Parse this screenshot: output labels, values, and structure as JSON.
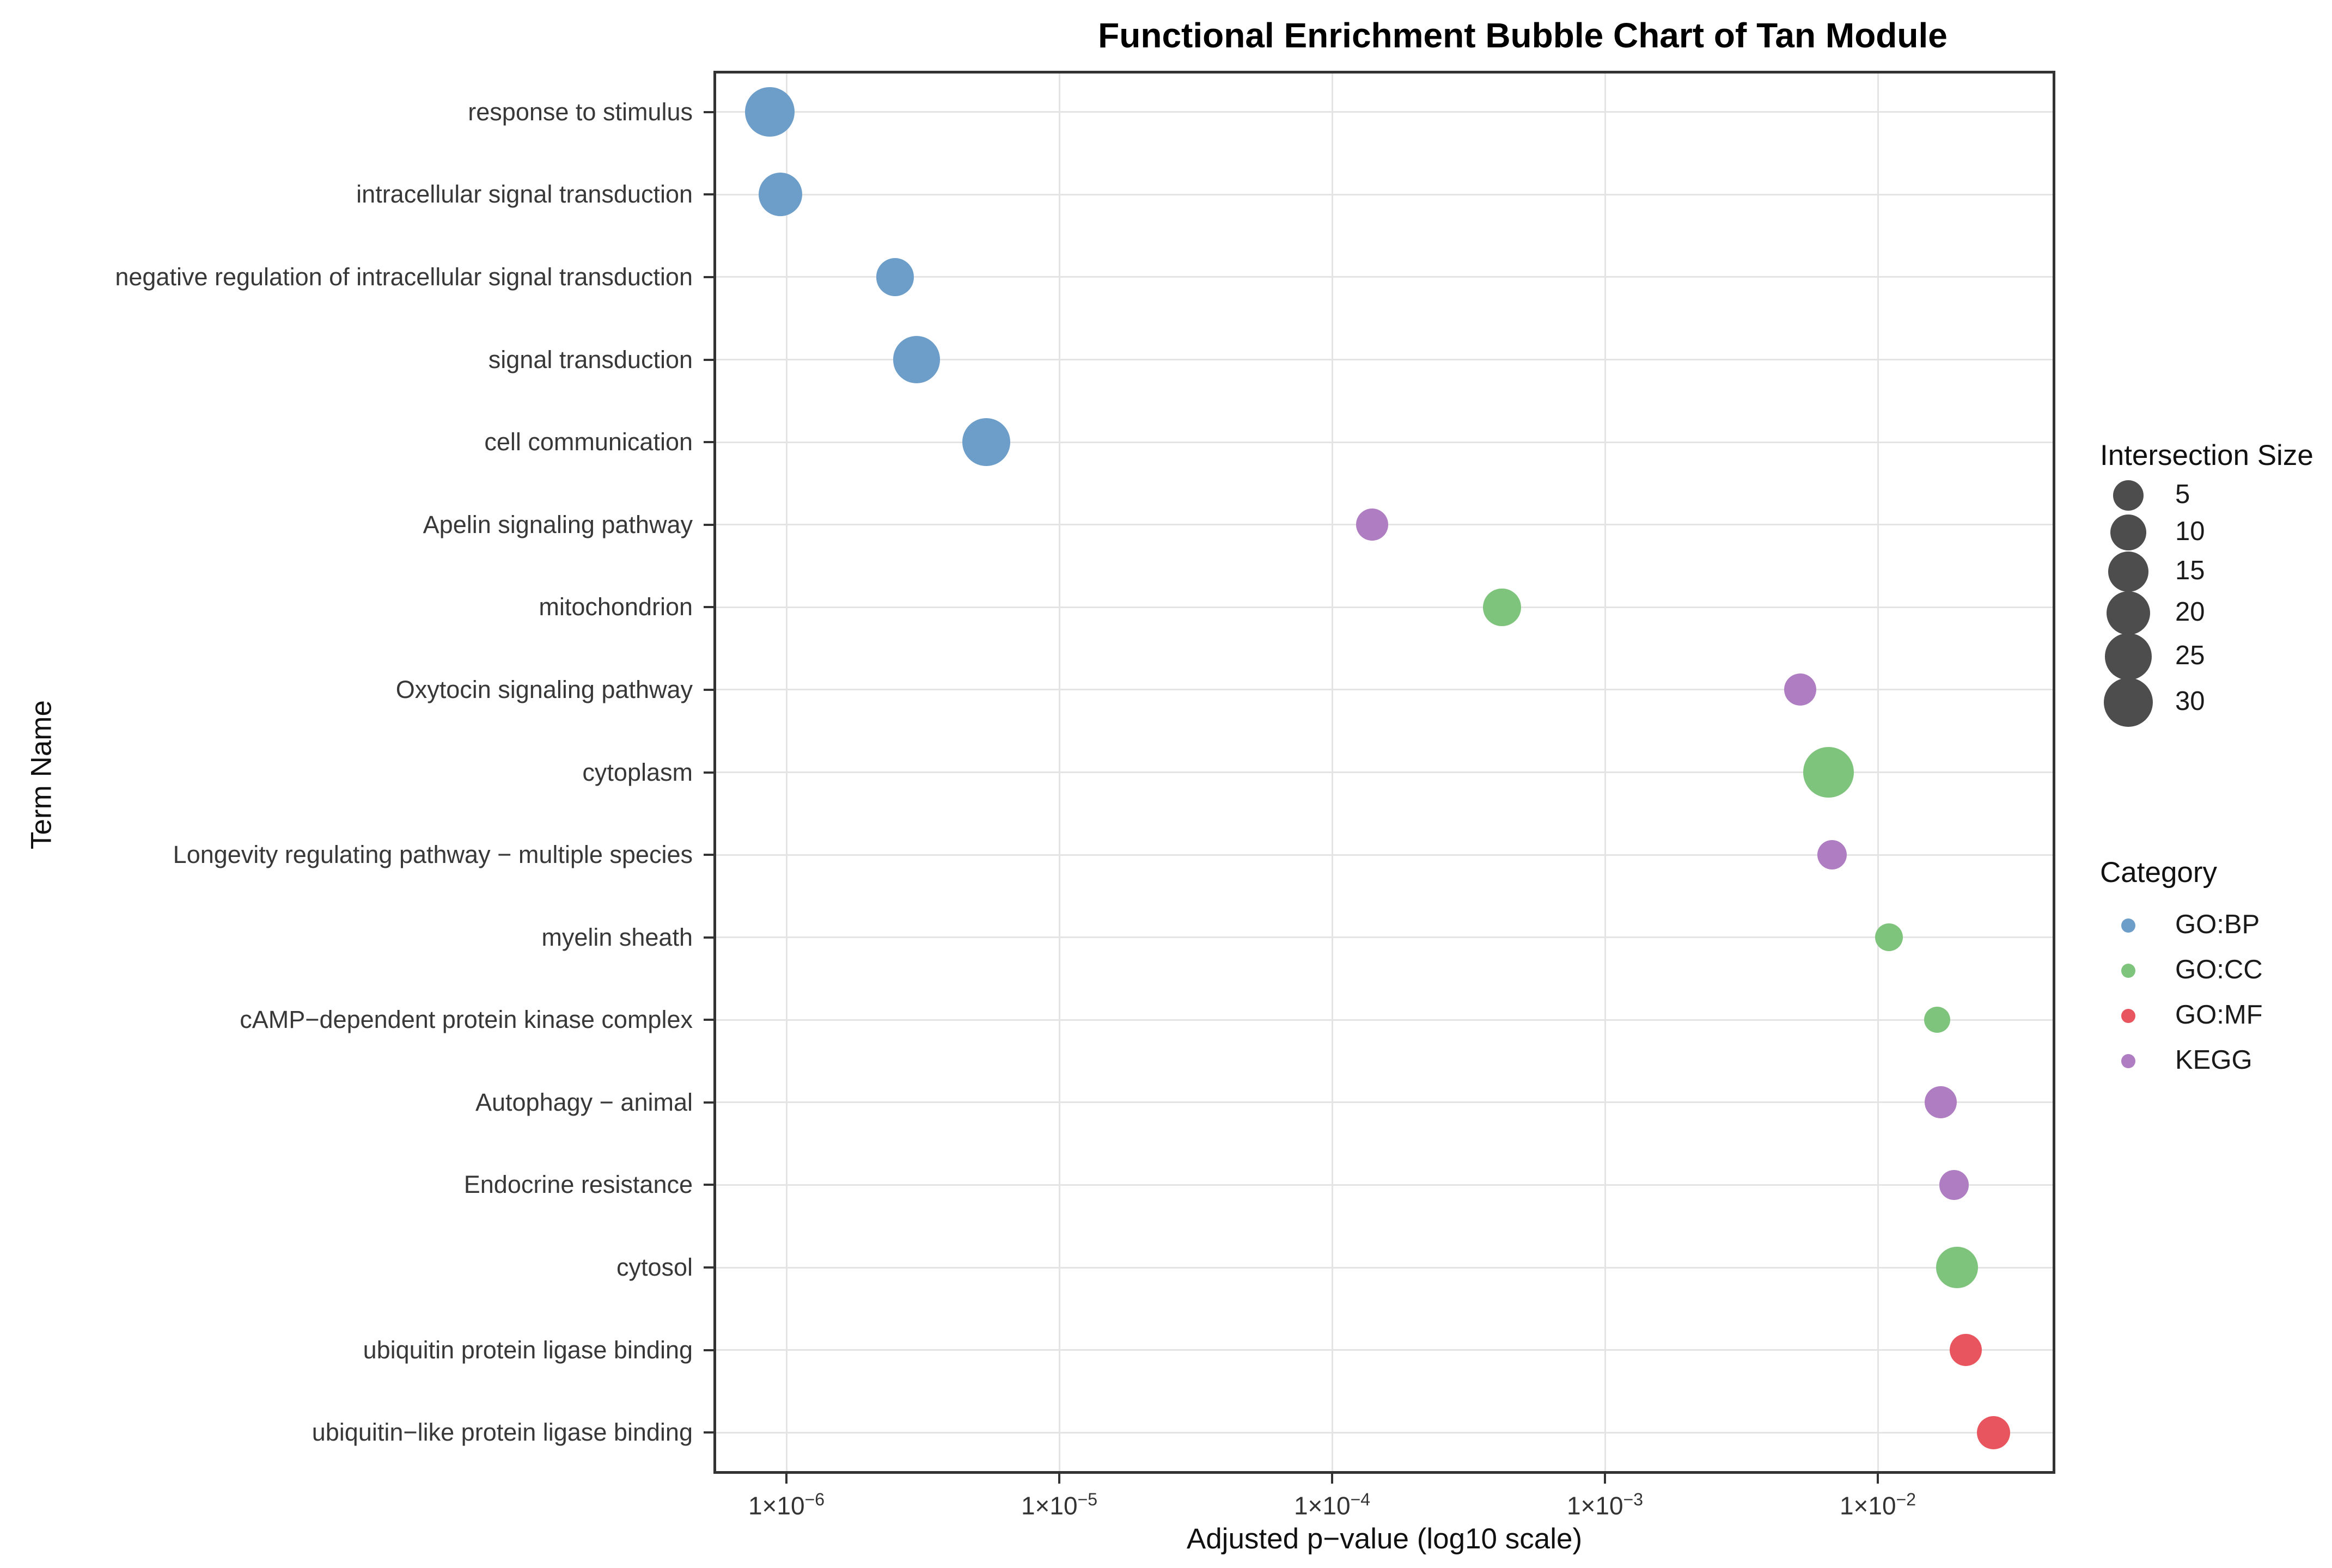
{
  "title": "Functional Enrichment Bubble Chart of Tan Module",
  "x_axis": {
    "title": "Adjusted p−value (log10 scale)",
    "ticks": [
      {
        "mantissa": "1×10",
        "exponent": "−6"
      },
      {
        "mantissa": "1×10",
        "exponent": "−5"
      },
      {
        "mantissa": "1×10",
        "exponent": "−4"
      },
      {
        "mantissa": "1×10",
        "exponent": "−3"
      },
      {
        "mantissa": "1×10",
        "exponent": "−2"
      }
    ]
  },
  "y_axis": {
    "title": "Term Name"
  },
  "legend_size": {
    "title": "Intersection Size",
    "sizes": [
      5,
      10,
      15,
      20,
      25,
      30
    ],
    "circle_color": "#4d4d4d"
  },
  "legend_category": {
    "title": "Category",
    "items": [
      {
        "label": "GO:BP",
        "color": "#6d9ec9"
      },
      {
        "label": "GO:CC",
        "color": "#7fc47d"
      },
      {
        "label": "GO:MF",
        "color": "#e8555e"
      },
      {
        "label": "KEGG",
        "color": "#af7dc1"
      }
    ]
  },
  "chart_data": {
    "type": "scatter",
    "title": "Functional Enrichment Bubble Chart of Tan Module",
    "xlabel": "Adjusted p−value (log10 scale)",
    "ylabel": "Term Name",
    "x_scale": "log10",
    "x_domain_log10": [
      -6.27,
      -1.35
    ],
    "x_tick_logs": [
      -6,
      -5,
      -4,
      -3,
      -2
    ],
    "grid": true,
    "legend_position": "right",
    "size_legend_values": [
      5,
      10,
      15,
      20,
      25,
      30
    ],
    "points": [
      {
        "term": "response to stimulus",
        "category": "GO:BP",
        "p_adj": 8.7e-07,
        "intersection_size": 30
      },
      {
        "term": "intracellular signal transduction",
        "category": "GO:BP",
        "p_adj": 9.5e-07,
        "intersection_size": 20
      },
      {
        "term": "negative regulation of intracellular signal transduction",
        "category": "GO:BP",
        "p_adj": 2.5e-06,
        "intersection_size": 12
      },
      {
        "term": "signal transduction",
        "category": "GO:BP",
        "p_adj": 3e-06,
        "intersection_size": 26
      },
      {
        "term": "cell communication",
        "category": "GO:BP",
        "p_adj": 5.4e-06,
        "intersection_size": 27
      },
      {
        "term": "Apelin signaling pathway",
        "category": "KEGG",
        "p_adj": 0.00014,
        "intersection_size": 6
      },
      {
        "term": "mitochondrion",
        "category": "GO:CC",
        "p_adj": 0.00042,
        "intersection_size": 12
      },
      {
        "term": "Oxytocin signaling pathway",
        "category": "KEGG",
        "p_adj": 0.0052,
        "intersection_size": 6
      },
      {
        "term": "cytoplasm",
        "category": "GO:CC",
        "p_adj": 0.0066,
        "intersection_size": 32
      },
      {
        "term": "Longevity regulating pathway − multiple species",
        "category": "KEGG",
        "p_adj": 0.0068,
        "intersection_size": 4
      },
      {
        "term": "myelin sheath",
        "category": "GO:CC",
        "p_adj": 0.011,
        "intersection_size": 3
      },
      {
        "term": "cAMP−dependent protein kinase complex",
        "category": "GO:CC",
        "p_adj": 0.0165,
        "intersection_size": 2
      },
      {
        "term": "Autophagy − animal",
        "category": "KEGG",
        "p_adj": 0.017,
        "intersection_size": 6
      },
      {
        "term": "Endocrine resistance",
        "category": "KEGG",
        "p_adj": 0.019,
        "intersection_size": 4
      },
      {
        "term": "cytosol",
        "category": "GO:CC",
        "p_adj": 0.0195,
        "intersection_size": 17
      },
      {
        "term": "ubiquitin protein ligase binding",
        "category": "GO:MF",
        "p_adj": 0.021,
        "intersection_size": 6
      },
      {
        "term": "ubiquitin−like protein ligase binding",
        "category": "GO:MF",
        "p_adj": 0.0265,
        "intersection_size": 7
      }
    ]
  }
}
